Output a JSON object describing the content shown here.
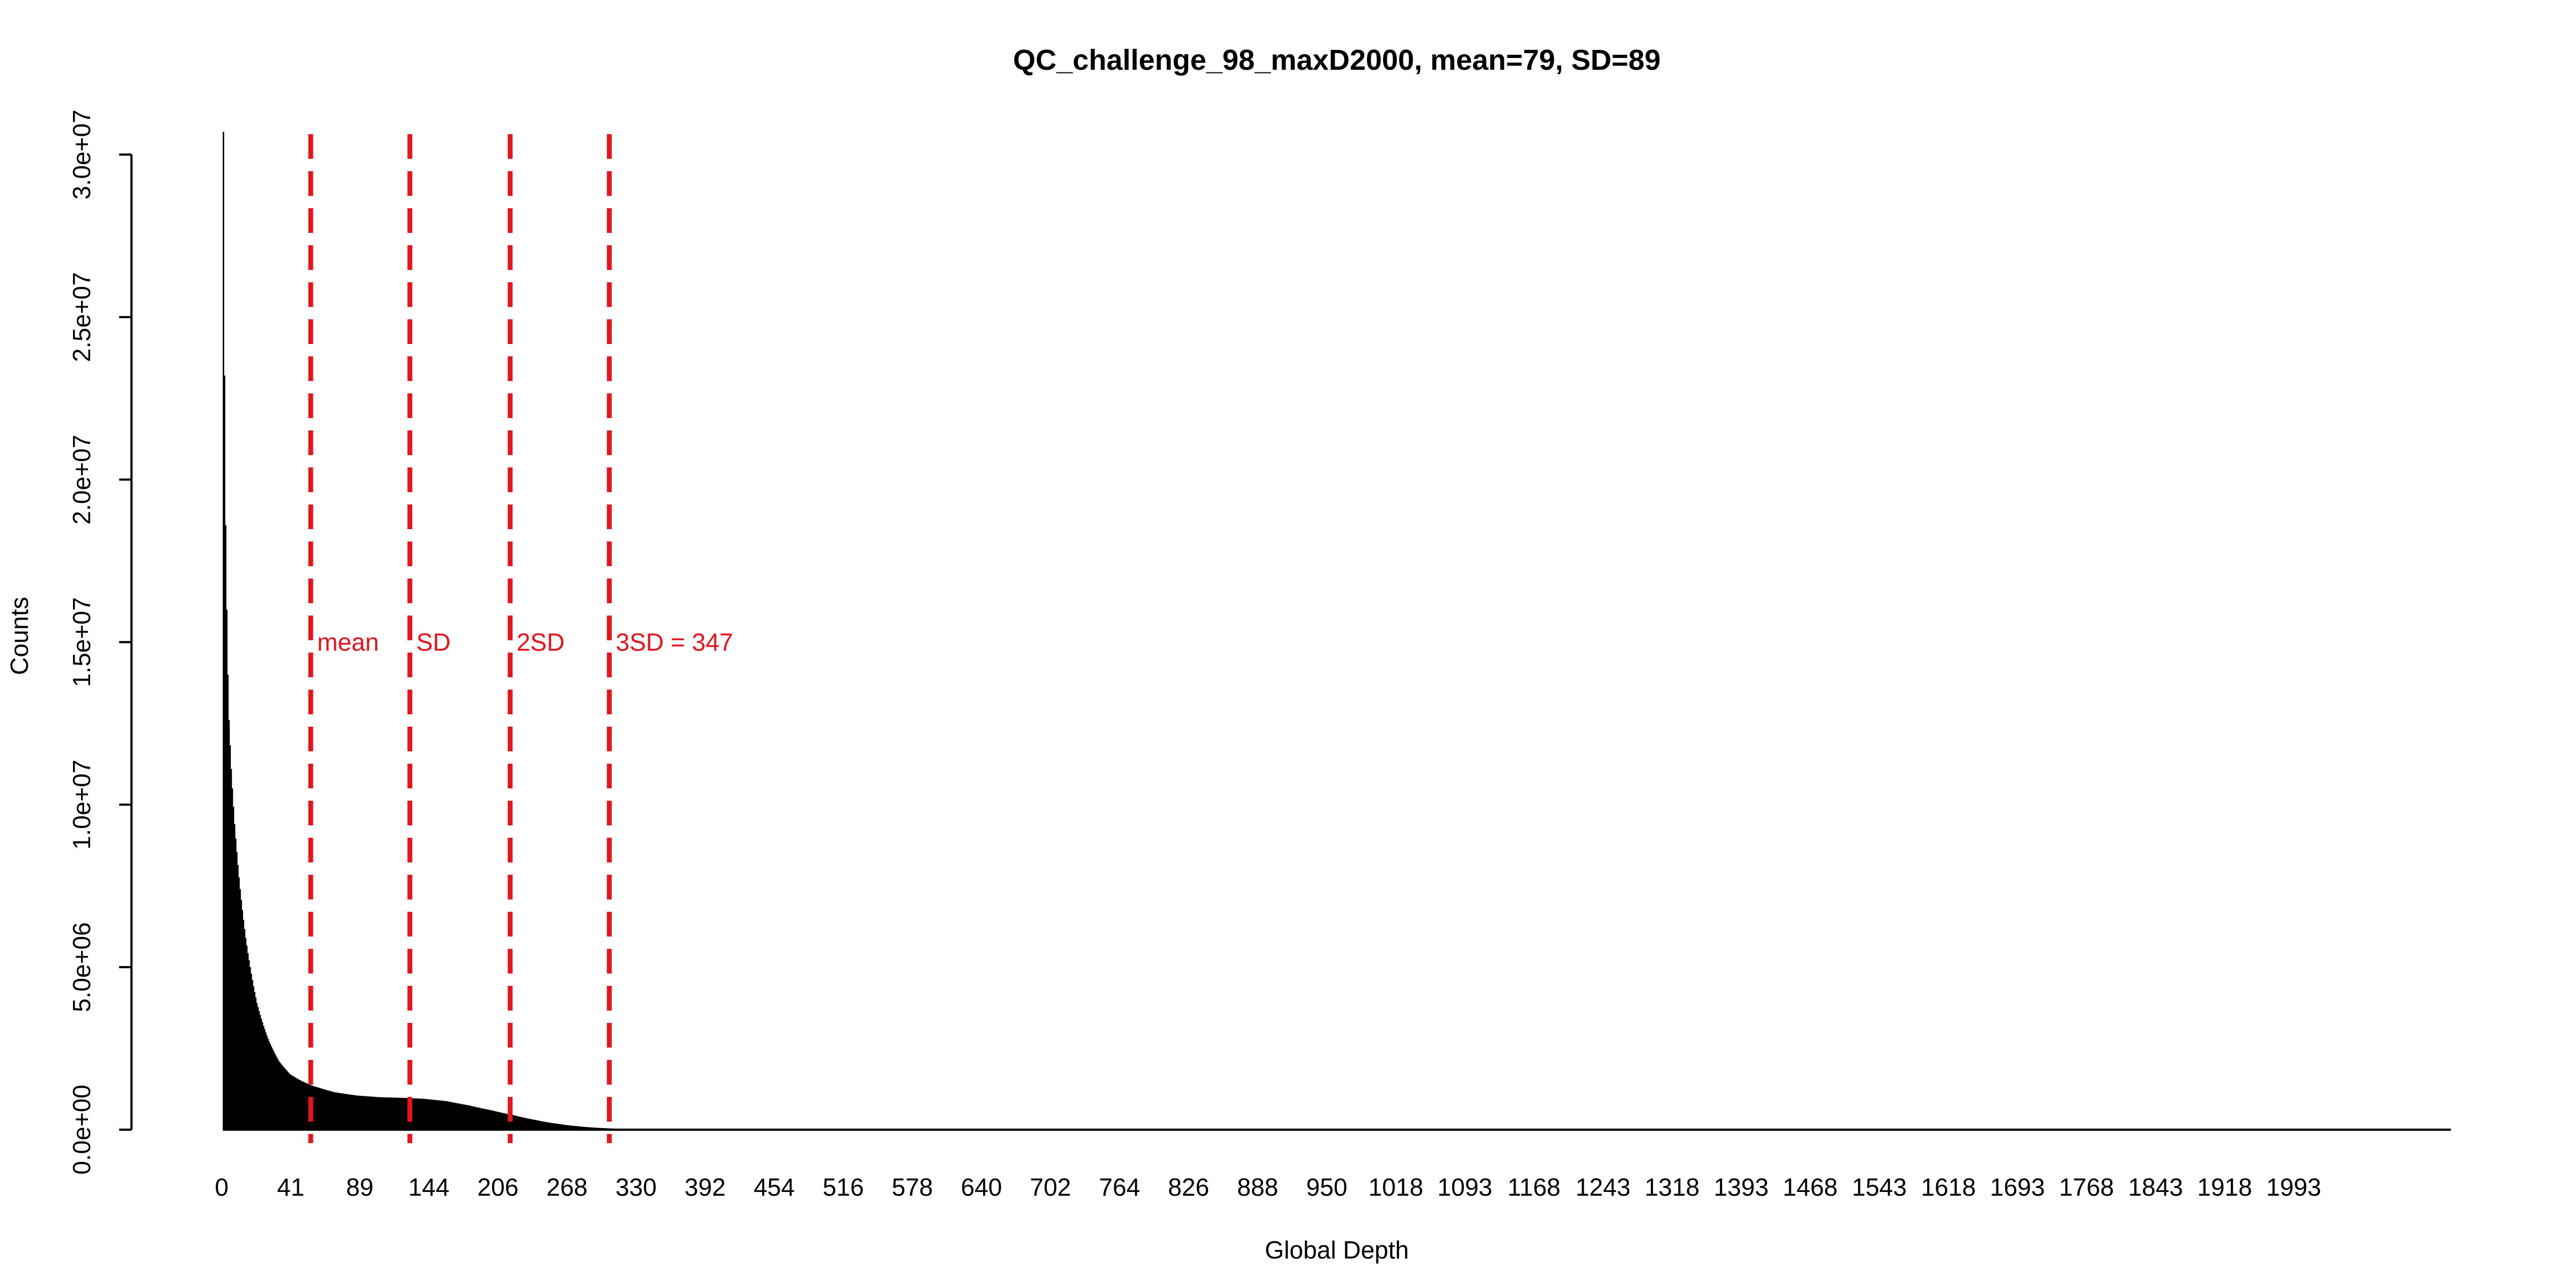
{
  "chart_data": {
    "type": "bar",
    "title": "QC_challenge_98_maxD2000, mean=79, SD=89",
    "xlabel": "Global Depth",
    "ylabel": "Counts",
    "xlim": [
      0,
      2000
    ],
    "ylim": [
      0,
      30000000
    ],
    "y_ticks": [
      0,
      5000000,
      10000000,
      15000000,
      20000000,
      25000000,
      30000000
    ],
    "y_tick_labels": [
      "0.0e+00",
      "5.0e+06",
      "1.0e+07",
      "1.5e+07",
      "2.0e+07",
      "2.5e+07",
      "3.0e+07"
    ],
    "x_tick_labels": [
      "0",
      "41",
      "89",
      "144",
      "206",
      "268",
      "330",
      "392",
      "454",
      "516",
      "578",
      "640",
      "702",
      "764",
      "826",
      "888",
      "950",
      "1018",
      "1093",
      "1168",
      "1243",
      "1318",
      "1393",
      "1468",
      "1543",
      "1618",
      "1693",
      "1768",
      "1843",
      "1918",
      "1993"
    ],
    "series": [
      {
        "values": [
          {
            "x": 0,
            "y": 30700000
          },
          {
            "x": 1,
            "y": 23200000
          },
          {
            "x": 2,
            "y": 18600000
          },
          {
            "x": 3,
            "y": 16000000
          },
          {
            "x": 4,
            "y": 14000000
          },
          {
            "x": 5,
            "y": 12600000
          },
          {
            "x": 7,
            "y": 11100000
          },
          {
            "x": 10,
            "y": 9400000
          },
          {
            "x": 15,
            "y": 7400000
          },
          {
            "x": 20,
            "y": 5900000
          },
          {
            "x": 25,
            "y": 4800000
          },
          {
            "x": 30,
            "y": 3900000
          },
          {
            "x": 40,
            "y": 2800000
          },
          {
            "x": 50,
            "y": 2100000
          },
          {
            "x": 60,
            "y": 1700000
          },
          {
            "x": 70,
            "y": 1500000
          },
          {
            "x": 80,
            "y": 1350000
          },
          {
            "x": 100,
            "y": 1150000
          },
          {
            "x": 120,
            "y": 1050000
          },
          {
            "x": 140,
            "y": 1000000
          },
          {
            "x": 160,
            "y": 980000
          },
          {
            "x": 180,
            "y": 950000
          },
          {
            "x": 200,
            "y": 880000
          },
          {
            "x": 220,
            "y": 750000
          },
          {
            "x": 240,
            "y": 600000
          },
          {
            "x": 260,
            "y": 450000
          },
          {
            "x": 280,
            "y": 300000
          },
          {
            "x": 300,
            "y": 180000
          },
          {
            "x": 320,
            "y": 100000
          },
          {
            "x": 340,
            "y": 50000
          },
          {
            "x": 360,
            "y": 25000
          },
          {
            "x": 400,
            "y": 10000
          },
          {
            "x": 500,
            "y": 3000
          },
          {
            "x": 700,
            "y": 1000
          },
          {
            "x": 1000,
            "y": 300
          },
          {
            "x": 2000,
            "y": 0
          }
        ]
      }
    ],
    "reference_lines": [
      {
        "x": 79,
        "label": "mean",
        "color": "#e8141c"
      },
      {
        "x": 168,
        "label": "SD",
        "color": "#e8141c"
      },
      {
        "x": 258,
        "label": "2SD",
        "color": "#e8141c"
      },
      {
        "x": 347,
        "label": "3SD = 347",
        "color": "#e8141c"
      }
    ],
    "ref_label_y": 15000000,
    "bar_color": "#000000",
    "grid": false
  }
}
